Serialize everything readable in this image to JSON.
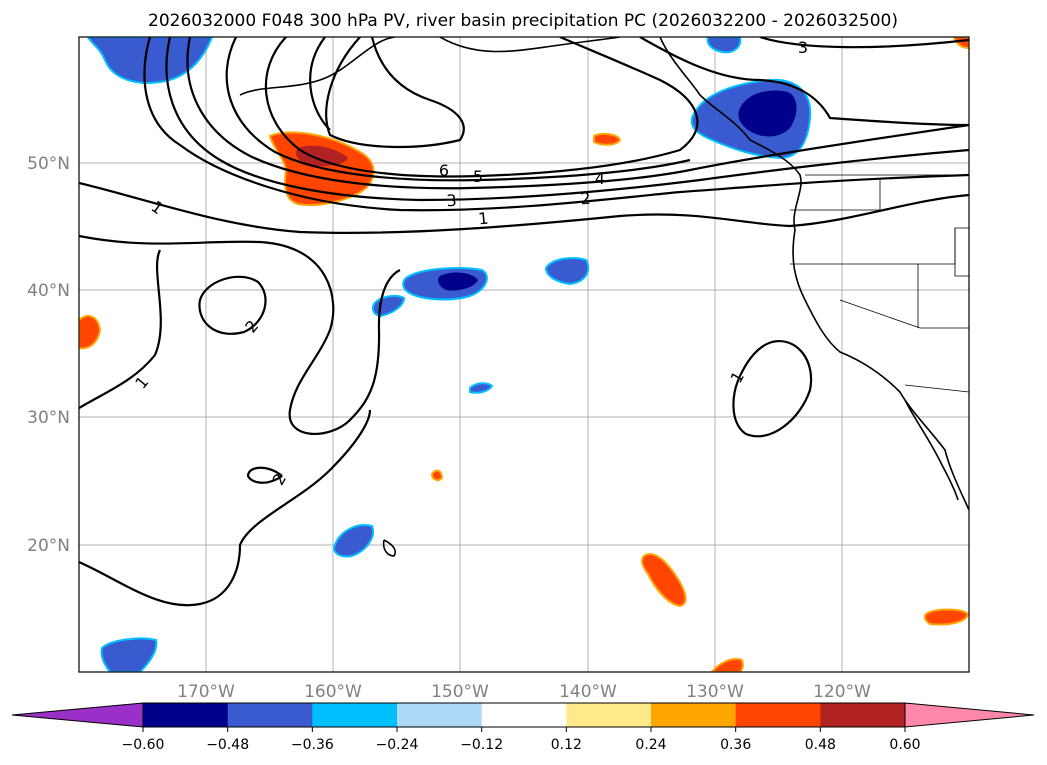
{
  "chart_data": {
    "type": "contour-map",
    "title": "2026032000 F048 300 hPa PV, river basin precipitation PC (2026032200 - 2026032500)",
    "lat_ticks": [
      {
        "value": 50,
        "label": "50°N"
      },
      {
        "value": 40,
        "label": "40°N"
      },
      {
        "value": 30,
        "label": "30°N"
      },
      {
        "value": 20,
        "label": "20°N"
      }
    ],
    "lon_ticks": [
      {
        "value": -170,
        "label": "170°W"
      },
      {
        "value": -160,
        "label": "160°W"
      },
      {
        "value": -150,
        "label": "150°W"
      },
      {
        "value": -140,
        "label": "140°W"
      },
      {
        "value": -130,
        "label": "130°W"
      },
      {
        "value": -120,
        "label": "120°W"
      }
    ],
    "extent": {
      "lon_min": -180,
      "lon_max": -110,
      "lat_min": 10,
      "lat_max": 60
    },
    "pv_contour_labels": [
      "1",
      "2",
      "3",
      "4",
      "5",
      "6"
    ],
    "colorbar": {
      "levels": [
        "−0.60",
        "−0.48",
        "−0.36",
        "−0.24",
        "−0.12",
        "0.12",
        "0.24",
        "0.36",
        "0.48",
        "0.60"
      ],
      "colors": [
        "#9a30c8",
        "#00008b",
        "#3a5bd0",
        "#00bfff",
        "#add8f7",
        "#ffffff",
        "#ffe98a",
        "#ffa500",
        "#ff4500",
        "#b22222",
        "#ff88aa"
      ],
      "extend": "both"
    }
  }
}
